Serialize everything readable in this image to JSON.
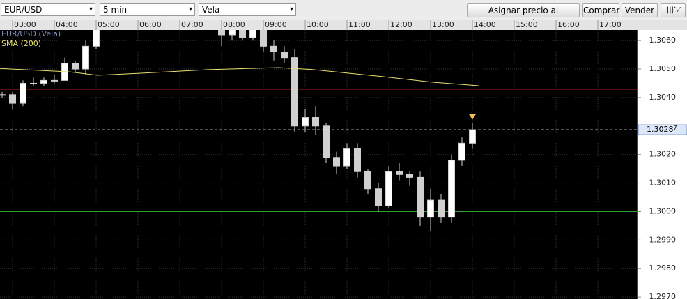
{
  "toolbar": {
    "symbol": "EUR/USD",
    "interval": "5 min",
    "style": "Vela",
    "buttons": [
      "Asignar precio al BoxOption",
      "Comprar",
      "Vender"
    ]
  },
  "chart_data": {
    "type": "candlestick",
    "legend": [
      "EUR/USD (Vela)",
      "SMA (200)"
    ],
    "xlim": [
      2.7,
      17.95
    ],
    "xticks": [
      {
        "value": 3,
        "label": "03:00"
      },
      {
        "value": 4,
        "label": "04:00"
      },
      {
        "value": 5,
        "label": "05:00"
      },
      {
        "value": 6,
        "label": "06:00"
      },
      {
        "value": 7,
        "label": "07:00"
      },
      {
        "value": 8,
        "label": "08:00"
      },
      {
        "value": 9,
        "label": "09:00"
      },
      {
        "value": 10,
        "label": "10:00"
      },
      {
        "value": 11,
        "label": "11:00"
      },
      {
        "value": 12,
        "label": "12:00"
      },
      {
        "value": 13,
        "label": "13:00"
      },
      {
        "value": 14,
        "label": "14:00"
      },
      {
        "value": 15,
        "label": "15:00"
      },
      {
        "value": 16,
        "label": "16:00"
      },
      {
        "value": 17,
        "label": "17:00"
      }
    ],
    "ylim": [
      1.29693,
      1.30637
    ],
    "yticks": [
      {
        "value": 1.297,
        "label": "1.2970"
      },
      {
        "value": 1.298,
        "label": "1.2980"
      },
      {
        "value": 1.299,
        "label": "1.2990"
      },
      {
        "value": 1.3,
        "label": "1.3000"
      },
      {
        "value": 1.301,
        "label": "1.3010"
      },
      {
        "value": 1.302,
        "label": "1.3020"
      },
      {
        "value": 1.304,
        "label": "1.3040"
      },
      {
        "value": 1.305,
        "label": "1.3050"
      },
      {
        "value": 1.306,
        "label": "1.3060"
      }
    ],
    "grid": true,
    "candles": {
      "color": "#d0d0d0",
      "x": [
        2.75,
        3.0,
        3.25,
        3.5,
        3.75,
        4.0,
        4.25,
        4.5,
        4.75,
        5.0,
        5.25,
        5.5,
        5.75,
        6.0,
        6.25,
        6.5,
        6.75,
        7.0,
        7.25,
        7.5,
        7.75,
        8.0,
        8.25,
        8.5,
        8.75,
        9.0,
        9.25,
        9.5,
        9.75,
        10.0,
        10.25,
        10.5,
        10.75,
        11.0,
        11.25,
        11.5,
        11.75,
        12.0,
        12.25,
        12.5,
        12.75,
        13.0,
        13.25,
        13.5,
        13.75,
        14.0
      ],
      "open": [
        1.3041,
        1.3041,
        1.3038,
        1.3045,
        1.3045,
        1.3046,
        1.3046,
        1.3052,
        1.305,
        1.3058,
        1.3066,
        1.3069,
        1.3071,
        1.307,
        1.3072,
        1.3073,
        1.3071,
        1.307,
        1.3072,
        1.3071,
        1.3069,
        1.3068,
        1.3062,
        1.3064,
        1.3061,
        1.3064,
        1.3058,
        1.3056,
        1.3054,
        1.303,
        1.3033,
        1.303,
        1.3019,
        1.3016,
        1.3022,
        1.3014,
        1.3008,
        1.3002,
        1.3014,
        1.3013,
        1.3012,
        1.2998,
        1.3004,
        1.2998,
        1.3018,
        1.3024
      ],
      "high": [
        1.3042,
        1.3042,
        1.3046,
        1.3047,
        1.3047,
        1.3048,
        1.3054,
        1.3053,
        1.306,
        1.3068,
        1.3072,
        1.3074,
        1.3073,
        1.3075,
        1.3075,
        1.3075,
        1.3073,
        1.3074,
        1.3074,
        1.3073,
        1.3071,
        1.307,
        1.3066,
        1.3066,
        1.3066,
        1.3065,
        1.306,
        1.3058,
        1.3057,
        1.3036,
        1.3037,
        1.3031,
        1.3021,
        1.3024,
        1.3024,
        1.3015,
        1.301,
        1.3016,
        1.3017,
        1.3014,
        1.3014,
        1.3008,
        1.3006,
        1.302,
        1.3026,
        1.3031
      ],
      "low": [
        1.304,
        1.3036,
        1.3037,
        1.3044,
        1.3044,
        1.3045,
        1.3046,
        1.3049,
        1.3048,
        1.3057,
        1.3064,
        1.3067,
        1.3068,
        1.3068,
        1.307,
        1.3069,
        1.3068,
        1.3068,
        1.3069,
        1.3067,
        1.3066,
        1.3058,
        1.306,
        1.306,
        1.306,
        1.3056,
        1.3053,
        1.3052,
        1.3028,
        1.3028,
        1.3027,
        1.3017,
        1.3013,
        1.3015,
        1.3012,
        1.3006,
        1.3,
        1.3001,
        1.3011,
        1.3009,
        1.2995,
        1.2993,
        1.2996,
        1.2996,
        1.3016,
        1.3022
      ],
      "close": [
        1.3041,
        1.3038,
        1.3045,
        1.3045,
        1.3046,
        1.3046,
        1.3052,
        1.305,
        1.3058,
        1.3066,
        1.3069,
        1.3071,
        1.307,
        1.3072,
        1.3073,
        1.3071,
        1.307,
        1.3072,
        1.3071,
        1.3069,
        1.3068,
        1.3062,
        1.3064,
        1.3061,
        1.3064,
        1.3058,
        1.3056,
        1.3054,
        1.303,
        1.3033,
        1.303,
        1.3019,
        1.3016,
        1.3022,
        1.3014,
        1.3008,
        1.3002,
        1.3014,
        1.3013,
        1.3012,
        1.2998,
        1.3004,
        1.2998,
        1.3018,
        1.3024,
        1.30287
      ]
    },
    "sma": {
      "color": "#e8e070",
      "x": [
        2.7,
        4.37,
        5.03,
        6.03,
        7.7,
        9.37,
        10.2,
        11.87,
        13.03,
        14.17
      ],
      "values": [
        1.30502,
        1.3049,
        1.30478,
        1.30485,
        1.30498,
        1.30505,
        1.30498,
        1.30473,
        1.30454,
        1.30441
      ]
    },
    "hlines": [
      {
        "value": 1.30429,
        "color": "#b02020"
      },
      {
        "value": 1.3,
        "color": "#30a030"
      }
    ],
    "current_price": {
      "value": 1.30287,
      "label": "1.3028",
      "pip": "7"
    }
  }
}
